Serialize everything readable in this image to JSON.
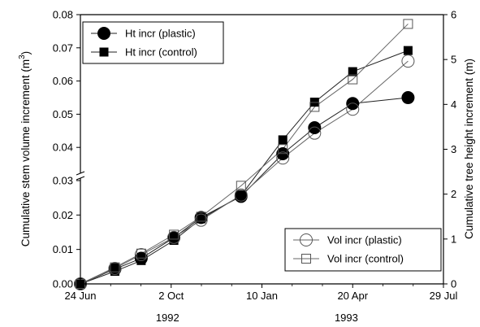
{
  "chart_data": {
    "type": "line",
    "title": "",
    "x_axis": {
      "label": "",
      "type": "date",
      "range": [
        "1992-06-24",
        "1993-07-29"
      ],
      "ticks": [
        {
          "value": "1992-06-24",
          "label": "24 Jun"
        },
        {
          "value": "1992-10-02",
          "label": "2 Oct"
        },
        {
          "value": "1993-01-10",
          "label": "10 Jan"
        },
        {
          "value": "1993-04-20",
          "label": "20 Apr"
        },
        {
          "value": "1993-07-29",
          "label": "29 Jul"
        }
      ],
      "year_labels": [
        {
          "value": "1992-09-28",
          "label": "1992"
        },
        {
          "value": "1993-04-13",
          "label": "1993"
        }
      ]
    },
    "y_axis_left": {
      "label": "Cumulative stem volume increment (m",
      "label_superscript": "3",
      "label_suffix": ")",
      "broken": true,
      "lower_segment": {
        "range": [
          0,
          0.03
        ],
        "ticks": [
          "0.00",
          "0.01",
          "0.02",
          "0.03"
        ]
      },
      "upper_segment": {
        "range": [
          0.03,
          0.08
        ],
        "ticks": [
          "0.04",
          "0.05",
          "0.06",
          "0.07",
          "0.08"
        ]
      }
    },
    "y_axis_right": {
      "label": "Cumulative tree height increment (m)",
      "range": [
        0,
        6
      ],
      "ticks": [
        "0",
        "1",
        "2",
        "3",
        "4",
        "5",
        "6"
      ]
    },
    "grid": false,
    "legends": [
      {
        "position": "top-left",
        "entries": [
          "Ht incr (plastic)",
          "Ht incr (control)"
        ]
      },
      {
        "position": "bottom-right",
        "entries": [
          "Vol incr (plastic)",
          "Vol incr (control)"
        ]
      }
    ],
    "series": [
      {
        "name": "Ht incr (plastic)",
        "axis": "right",
        "marker": "filled-circle",
        "points": [
          {
            "x": "1992-06-24",
            "y": 0.0
          },
          {
            "x": "1992-08-01",
            "y": 0.33
          },
          {
            "x": "1992-08-30",
            "y": 0.57
          },
          {
            "x": "1992-10-05",
            "y": 1.03
          },
          {
            "x": "1992-11-04",
            "y": 1.48
          },
          {
            "x": "1992-12-18",
            "y": 1.95
          },
          {
            "x": "1993-02-02",
            "y": 2.9
          },
          {
            "x": "1993-03-09",
            "y": 3.48
          },
          {
            "x": "1993-04-20",
            "y": 4.02
          },
          {
            "x": "1993-06-20",
            "y": 4.15
          }
        ]
      },
      {
        "name": "Ht incr (control)",
        "axis": "right",
        "marker": "filled-square",
        "points": [
          {
            "x": "1992-06-24",
            "y": 0.0
          },
          {
            "x": "1992-08-01",
            "y": 0.28
          },
          {
            "x": "1992-08-30",
            "y": 0.52
          },
          {
            "x": "1992-10-05",
            "y": 0.97
          },
          {
            "x": "1992-11-04",
            "y": 1.45
          },
          {
            "x": "1992-12-18",
            "y": 1.97
          },
          {
            "x": "1993-02-02",
            "y": 3.21
          },
          {
            "x": "1993-03-09",
            "y": 4.05
          },
          {
            "x": "1993-04-20",
            "y": 4.73
          },
          {
            "x": "1993-06-20",
            "y": 5.2
          }
        ]
      },
      {
        "name": "Vol incr (plastic)",
        "axis": "left",
        "marker": "open-circle",
        "points": [
          {
            "x": "1992-06-24",
            "y": 0.0
          },
          {
            "x": "1992-08-01",
            "y": 0.0045
          },
          {
            "x": "1992-08-30",
            "y": 0.0085
          },
          {
            "x": "1992-10-05",
            "y": 0.0135
          },
          {
            "x": "1992-11-04",
            "y": 0.0185
          },
          {
            "x": "1992-12-18",
            "y": 0.0258
          },
          {
            "x": "1993-02-02",
            "y": 0.0368
          },
          {
            "x": "1993-03-09",
            "y": 0.0443
          },
          {
            "x": "1993-04-20",
            "y": 0.0515
          },
          {
            "x": "1993-06-20",
            "y": 0.066
          }
        ]
      },
      {
        "name": "Vol incr (control)",
        "axis": "left",
        "marker": "open-square",
        "points": [
          {
            "x": "1992-06-24",
            "y": 0.0
          },
          {
            "x": "1992-08-01",
            "y": 0.0048
          },
          {
            "x": "1992-08-30",
            "y": 0.0088
          },
          {
            "x": "1992-10-05",
            "y": 0.0143
          },
          {
            "x": "1992-11-04",
            "y": 0.0195
          },
          {
            "x": "1992-12-18",
            "y": 0.0285
          },
          {
            "x": "1993-02-02",
            "y": 0.0395
          },
          {
            "x": "1993-03-09",
            "y": 0.0522
          },
          {
            "x": "1993-04-20",
            "y": 0.0605
          },
          {
            "x": "1993-06-20",
            "y": 0.0772
          }
        ]
      }
    ]
  }
}
